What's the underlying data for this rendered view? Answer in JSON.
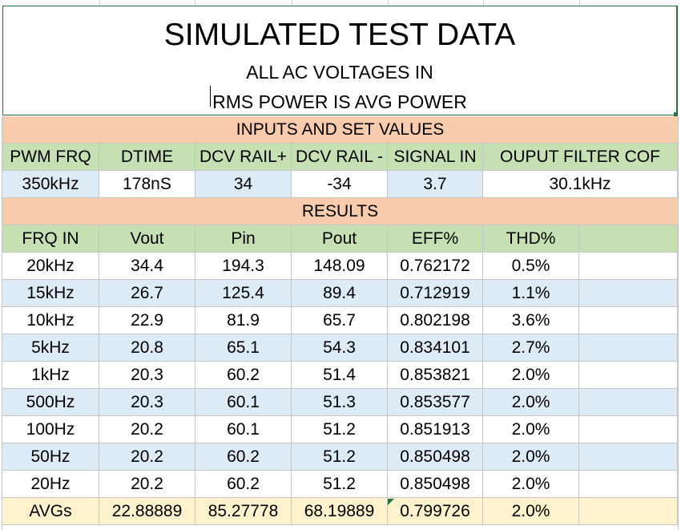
{
  "header": {
    "title": "SIMULATED TEST DATA",
    "subtitle1": "ALL AC VOLTAGES IN",
    "subtitle2": "RMS POWER IS AVG POWER"
  },
  "inputs": {
    "section_label": "INPUTS AND SET VALUES",
    "headers": [
      "PWM FRQ",
      "DTIME",
      "DCV RAIL+",
      "DCV RAIL -",
      "SIGNAL IN",
      "OUPUT FILTER COF"
    ],
    "values": [
      "350kHz",
      "178nS",
      "34",
      "-34",
      "3.7",
      "30.1kHz"
    ]
  },
  "results": {
    "section_label": "RESULTS",
    "headers": [
      "FRQ IN",
      "Vout",
      "Pin",
      "Pout",
      "EFF%",
      "THD%",
      ""
    ],
    "rows": [
      [
        "20kHz",
        "34.4",
        "194.3",
        "148.09",
        "0.762172",
        "0.5%",
        ""
      ],
      [
        "15kHz",
        "26.7",
        "125.4",
        "89.4",
        "0.712919",
        "1.1%",
        ""
      ],
      [
        "10kHz",
        "22.9",
        "81.9",
        "65.7",
        "0.802198",
        "3.6%",
        ""
      ],
      [
        "5kHz",
        "20.8",
        "65.1",
        "54.3",
        "0.834101",
        "2.7%",
        ""
      ],
      [
        "1kHz",
        "20.3",
        "60.2",
        "51.4",
        "0.853821",
        "2.0%",
        ""
      ],
      [
        "500Hz",
        "20.3",
        "60.1",
        "51.3",
        "0.853577",
        "2.0%",
        ""
      ],
      [
        "100Hz",
        "20.2",
        "60.1",
        "51.2",
        "0.851913",
        "2.0%",
        ""
      ],
      [
        "50Hz",
        "20.2",
        "60.2",
        "51.2",
        "0.850498",
        "2.0%",
        ""
      ],
      [
        "20Hz",
        "20.2",
        "60.2",
        "51.2",
        "0.850498",
        "2.0%",
        ""
      ]
    ],
    "avg_row": [
      "AVGs",
      "22.88889",
      "85.27778",
      "68.19889",
      "0.799726",
      "2.0%",
      ""
    ]
  },
  "colors": {
    "section": "#f8cbad",
    "header_green": "#c6e0b4",
    "band_blue": "#ddebf7",
    "avg_tan": "#fff2cc",
    "selection": "#217346"
  }
}
